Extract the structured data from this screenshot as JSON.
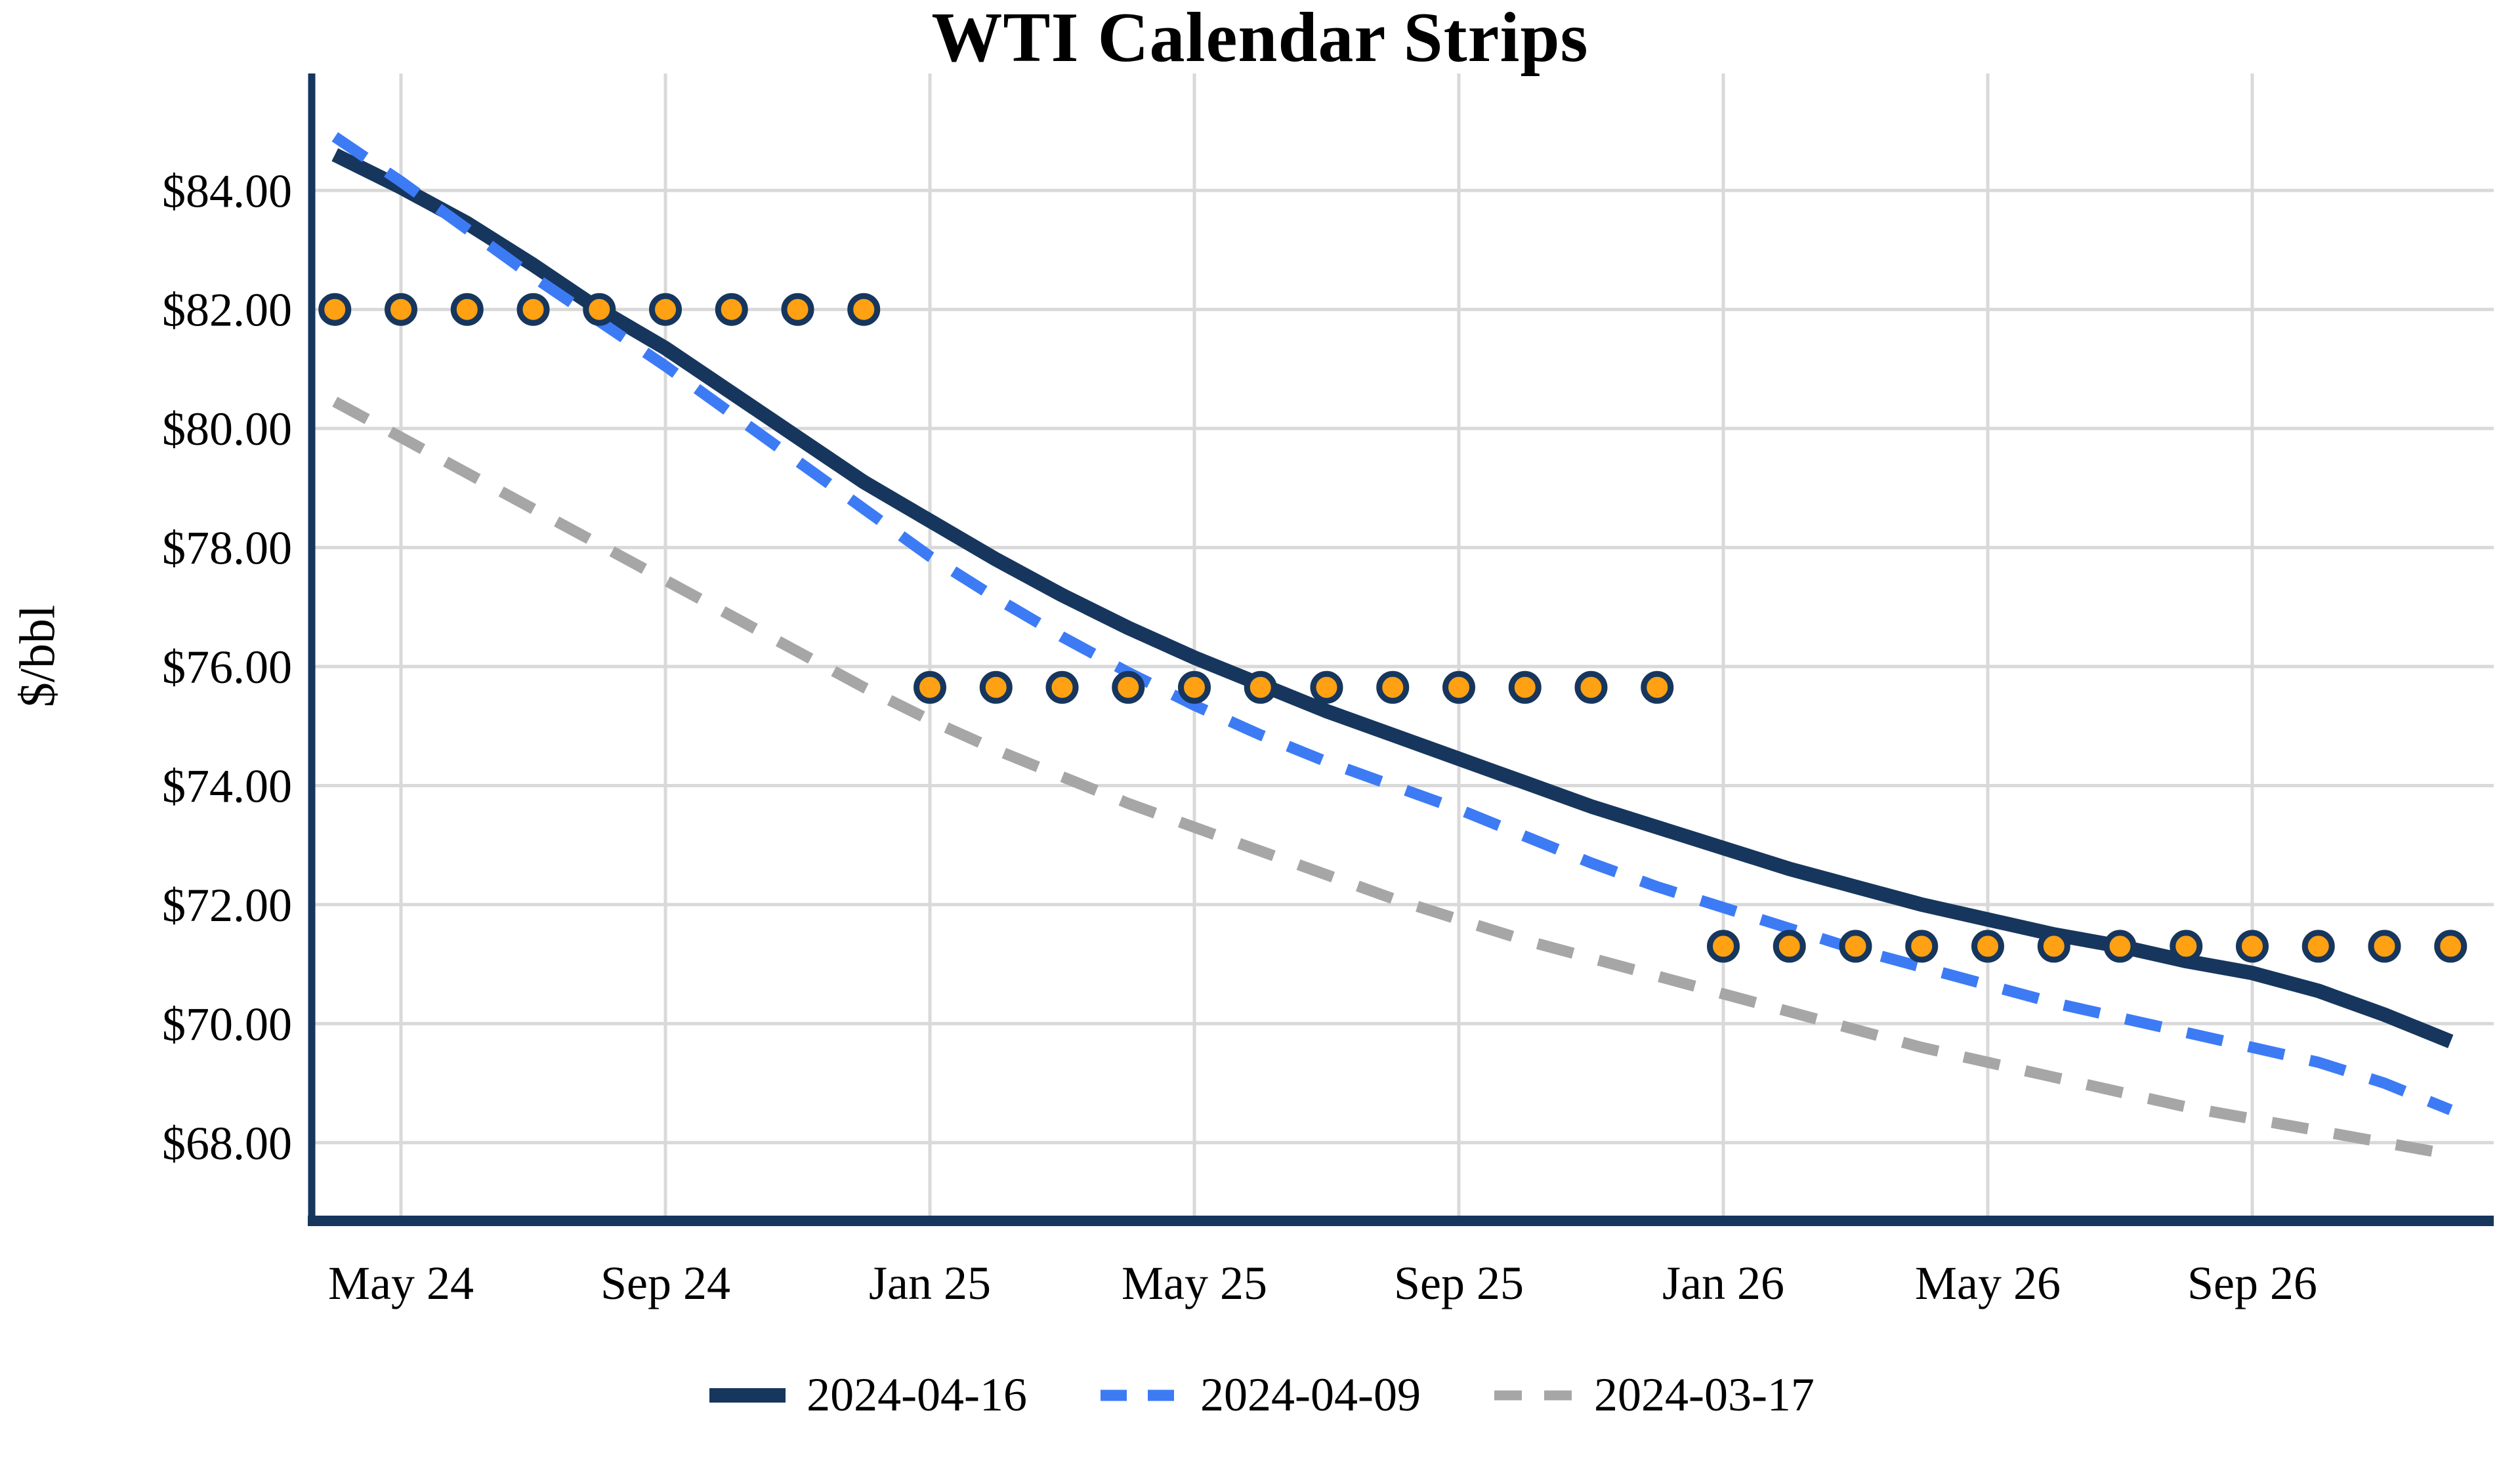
{
  "title": "WTI Calendar Strips",
  "y_axis_title": "$/bbl",
  "colors": {
    "navy": "#17365D",
    "blue": "#3D7BF5",
    "gray": "#A6A6A6",
    "orange": "#FFA113",
    "gridline": "#D9D9D9",
    "text": "#000000",
    "background": "#FFFFFF"
  },
  "chart_data": {
    "type": "line",
    "title": "WTI Calendar Strips",
    "xlabel": "",
    "ylabel": "$/bbl",
    "ylim": [
      66.5,
      85.5
    ],
    "grid": true,
    "legend_position": "bottom",
    "x": [
      "Apr 24",
      "May 24",
      "Jun 24",
      "Jul 24",
      "Aug 24",
      "Sep 24",
      "Oct 24",
      "Nov 24",
      "Dec 24",
      "Jan 25",
      "Feb 25",
      "Mar 25",
      "Apr 25",
      "May 25",
      "Jun 25",
      "Jul 25",
      "Aug 25",
      "Sep 25",
      "Oct 25",
      "Nov 25",
      "Dec 25",
      "Jan 26",
      "Feb 26",
      "Mar 26",
      "Apr 26",
      "May 26",
      "Jun 26",
      "Jul 26",
      "Aug 26",
      "Sep 26",
      "Oct 26",
      "Nov 26",
      "Dec 26"
    ],
    "x_ticks": [
      {
        "index": 1,
        "label": "May 24"
      },
      {
        "index": 5,
        "label": "Sep 24"
      },
      {
        "index": 9,
        "label": "Jan 25"
      },
      {
        "index": 13,
        "label": "May 25"
      },
      {
        "index": 17,
        "label": "Sep 25"
      },
      {
        "index": 21,
        "label": "Jan 26"
      },
      {
        "index": 25,
        "label": "May 26"
      },
      {
        "index": 29,
        "label": "Sep 26"
      }
    ],
    "y_ticks": [
      {
        "value": 84,
        "label": "$84.00"
      },
      {
        "value": 82,
        "label": "$82.00"
      },
      {
        "value": 80,
        "label": "$80.00"
      },
      {
        "value": 78,
        "label": "$78.00"
      },
      {
        "value": 76,
        "label": "$76.00"
      },
      {
        "value": 74,
        "label": "$74.00"
      },
      {
        "value": 72,
        "label": "$72.00"
      },
      {
        "value": 70,
        "label": "$70.00"
      },
      {
        "value": 68,
        "label": "$68.00"
      }
    ],
    "series": [
      {
        "name": "2024-04-16",
        "color": "#17365D",
        "style": "solid",
        "values": [
          84.6,
          84.05,
          83.45,
          82.75,
          82.0,
          81.35,
          80.6,
          79.85,
          79.1,
          78.45,
          77.8,
          77.2,
          76.65,
          76.15,
          75.7,
          75.25,
          74.85,
          74.45,
          74.05,
          73.65,
          73.3,
          72.95,
          72.6,
          72.3,
          72.0,
          71.75,
          71.5,
          71.3,
          71.05,
          70.85,
          70.55,
          70.15,
          69.7
        ]
      },
      {
        "name": "2024-04-09",
        "color": "#3D7BF5",
        "style": "dashed",
        "values": [
          84.9,
          84.15,
          83.35,
          82.55,
          81.8,
          81.05,
          80.25,
          79.45,
          78.65,
          77.85,
          77.15,
          76.5,
          75.9,
          75.35,
          74.85,
          74.4,
          74.0,
          73.6,
          73.15,
          72.7,
          72.3,
          71.95,
          71.6,
          71.25,
          70.95,
          70.65,
          70.35,
          70.1,
          69.85,
          69.6,
          69.35,
          69.0,
          68.55
        ]
      },
      {
        "name": "2024-03-17",
        "color": "#A6A6A6",
        "style": "dashed",
        "values": [
          80.45,
          79.85,
          79.25,
          78.65,
          78.05,
          77.45,
          76.85,
          76.25,
          75.65,
          75.1,
          74.6,
          74.15,
          73.7,
          73.3,
          72.9,
          72.5,
          72.1,
          71.75,
          71.4,
          71.1,
          70.8,
          70.5,
          70.2,
          69.9,
          69.6,
          69.35,
          69.1,
          68.85,
          68.6,
          68.4,
          68.2,
          68.0,
          67.8
        ]
      }
    ],
    "strip_dots": [
      {
        "value": 82.0,
        "start_index": 0,
        "end_index": 8,
        "marker": "circle",
        "fill": "#FFA113",
        "ring": "#17365D"
      },
      {
        "value": 75.65,
        "start_index": 9,
        "end_index": 20,
        "marker": "circle",
        "fill": "#FFA113",
        "ring": "#17365D"
      },
      {
        "value": 71.3,
        "start_index": 21,
        "end_index": 32,
        "marker": "circle",
        "fill": "#FFA113",
        "ring": "#17365D"
      }
    ]
  },
  "legend": {
    "items": [
      {
        "label": "2024-04-16"
      },
      {
        "label": "2024-04-09"
      },
      {
        "label": "2024-03-17"
      }
    ]
  }
}
